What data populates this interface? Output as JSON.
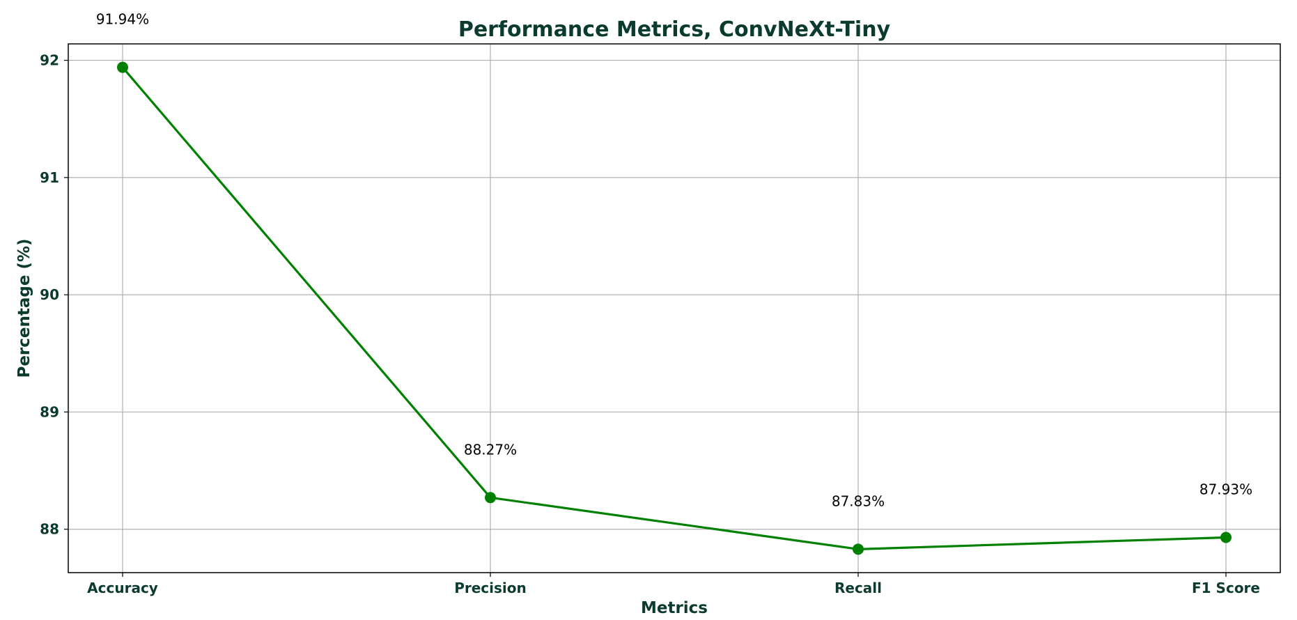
{
  "chart_data": {
    "type": "line",
    "title": "Performance Metrics, ConvNeXt-Tiny",
    "xlabel": "Metrics",
    "ylabel": "Percentage (%)",
    "categories": [
      "Accuracy",
      "Precision",
      "Recall",
      "F1 Score"
    ],
    "values": [
      91.94,
      88.27,
      87.83,
      87.93
    ],
    "data_labels": [
      "91.94%",
      "88.27%",
      "87.83%",
      "87.93%"
    ],
    "ylim": [
      87.63,
      92.14
    ],
    "yticks": [
      88,
      89,
      90,
      91,
      92
    ],
    "grid": true,
    "legend": false,
    "colors": {
      "line": "#008000",
      "text": "#0b3b2e",
      "grid": "#b0b0b0",
      "axes": "#000000"
    }
  }
}
